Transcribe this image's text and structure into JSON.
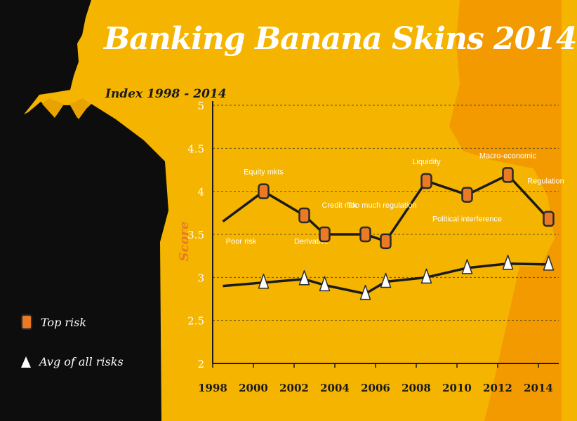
{
  "title": "Banking Banana Skins 2014",
  "subtitle": "Index 1998 - 2014",
  "colors": {
    "background": "#f4b400",
    "silhouette_front": "#0d0d0d",
    "silhouette_back": "#f29a00",
    "top_risk_marker": "#ea7a24",
    "avg_marker": "#ffffff",
    "line": "#1a1a1a",
    "ylabel": "#ea7a24"
  },
  "legend": {
    "top_risk": "Top risk",
    "avg": "Avg of all risks"
  },
  "chart_data": {
    "type": "line",
    "title": "Banking Banana Skins 2014",
    "subtitle": "Index 1998 - 2014",
    "ylabel": "Score",
    "xlabel": "",
    "xlim": [
      1998,
      2015
    ],
    "ylim": [
      2,
      5
    ],
    "x_ticks": [
      "1998",
      "2000",
      "2002",
      "2004",
      "2006",
      "2008",
      "2010",
      "2012",
      "2014"
    ],
    "y_ticks": [
      "2",
      "2.5",
      "3",
      "3.5",
      "4",
      "4.5",
      "5"
    ],
    "grid": "horizontal dashed",
    "legend_position": "bottom-left",
    "series": [
      {
        "name": "Top risk",
        "marker": "square",
        "points": [
          {
            "x": 1998.5,
            "y": 3.65,
            "marker": false,
            "label": "Poor risk",
            "label_pos": "below"
          },
          {
            "x": 2000.5,
            "y": 4.0,
            "marker": true,
            "label": "Equity mkts",
            "label_pos": "above"
          },
          {
            "x": 2002.5,
            "y": 3.72,
            "marker": true,
            "label": "Derivative",
            "label_pos": "below"
          },
          {
            "x": 2003.5,
            "y": 3.5,
            "marker": true,
            "label": "Credit risk",
            "label_pos": "above-right"
          },
          {
            "x": 2005.5,
            "y": 3.5,
            "marker": true,
            "label": "Too much regulation",
            "label_pos": "above-right"
          },
          {
            "x": 2006.5,
            "y": 3.42,
            "marker": true,
            "label": "",
            "label_pos": ""
          },
          {
            "x": 2008.5,
            "y": 4.12,
            "marker": true,
            "label": "Liquidity",
            "label_pos": "above"
          },
          {
            "x": 2010.5,
            "y": 3.96,
            "marker": true,
            "label": "Political interference",
            "label_pos": "below"
          },
          {
            "x": 2012.5,
            "y": 4.19,
            "marker": true,
            "label": "Macro-economic",
            "label_pos": "above"
          },
          {
            "x": 2014.5,
            "y": 3.68,
            "marker": true,
            "label": "Regulation",
            "label_pos": "above"
          }
        ]
      },
      {
        "name": "Avg of all risks",
        "marker": "triangle",
        "points": [
          {
            "x": 1998.5,
            "y": 2.9,
            "marker": false
          },
          {
            "x": 2000.5,
            "y": 2.94,
            "marker": true
          },
          {
            "x": 2002.5,
            "y": 2.98,
            "marker": true
          },
          {
            "x": 2003.5,
            "y": 2.91,
            "marker": true
          },
          {
            "x": 2005.5,
            "y": 2.81,
            "marker": true
          },
          {
            "x": 2006.5,
            "y": 2.95,
            "marker": true
          },
          {
            "x": 2008.5,
            "y": 3.0,
            "marker": true
          },
          {
            "x": 2010.5,
            "y": 3.11,
            "marker": true
          },
          {
            "x": 2012.5,
            "y": 3.16,
            "marker": true
          },
          {
            "x": 2014.5,
            "y": 3.15,
            "marker": true
          }
        ]
      }
    ]
  }
}
